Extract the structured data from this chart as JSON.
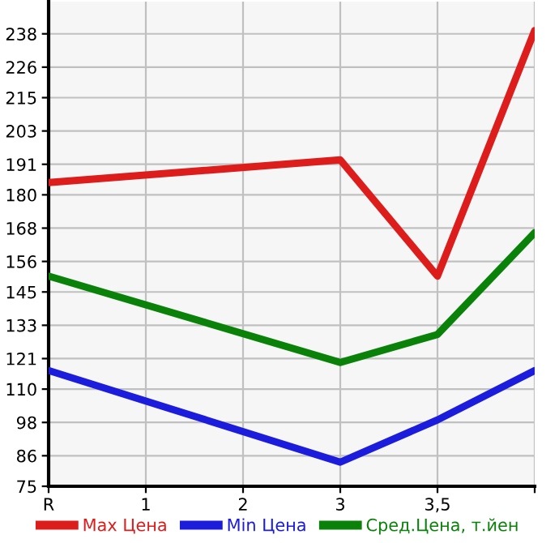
{
  "chart_data": {
    "type": "line",
    "categories": [
      "R",
      "1",
      "2",
      "3",
      "3,5",
      null
    ],
    "series": [
      {
        "name": "Max Цена",
        "color": "#dd1c1c",
        "values": [
          184.4,
          null,
          null,
          192.6,
          150.7,
          239.2
        ]
      },
      {
        "name": "Min Цена",
        "color": "#1c1cdd",
        "values": [
          116.7,
          null,
          null,
          83.7,
          98.9,
          116.7
        ]
      },
      {
        "name": "Сред.Цена, т.йен",
        "color": "#0a820a",
        "values": [
          150.7,
          null,
          null,
          119.6,
          129.7,
          166.4
        ]
      }
    ],
    "ylim": [
      75,
      249.6
    ],
    "yticks": [
      75,
      86,
      98,
      110,
      121,
      133,
      145,
      156,
      168,
      180,
      191,
      203,
      215,
      226,
      238
    ],
    "grid": true,
    "legend": "bottom",
    "marker": "none",
    "line_style": "solid"
  }
}
